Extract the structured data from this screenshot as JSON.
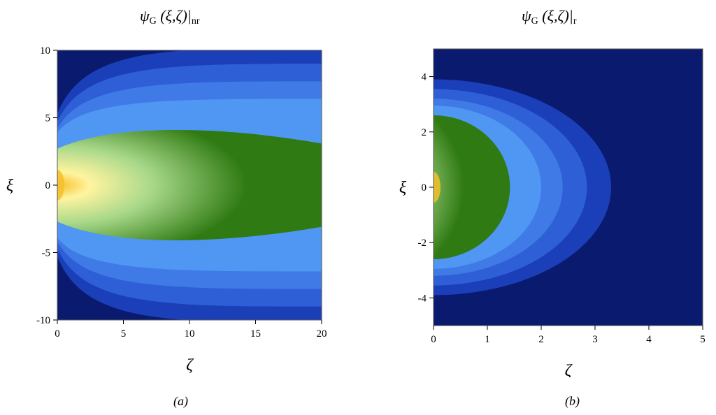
{
  "chart_data": [
    {
      "type": "heatmap",
      "panel": "a",
      "title": {
        "symbol": "ψ",
        "sub": "G",
        "args": " (ξ,ζ)|",
        "sub2": "nr"
      },
      "xlabel": "ζ",
      "ylabel": "ξ",
      "caption": "(a)",
      "xlim": [
        0,
        20
      ],
      "ylim": [
        -10,
        10
      ],
      "xticks": [
        0,
        5,
        10,
        15,
        20
      ],
      "yticks": [
        -10,
        -5,
        0,
        5,
        10
      ],
      "contour_regions": [
        {
          "level": "background",
          "color": "#0a1a6e"
        },
        {
          "level": "outer-band-1",
          "color": "#1a3fb8"
        },
        {
          "level": "outer-band-2",
          "color": "#2e5fd6"
        },
        {
          "level": "outer-band-3",
          "color": "#3f7ae6"
        },
        {
          "level": "outer-band-4",
          "color": "#4f97f2"
        },
        {
          "level": "inner",
          "color": "#2f7a12"
        },
        {
          "level": "peak",
          "color": "#f5c02a"
        }
      ],
      "peak_location": [
        0,
        0
      ]
    },
    {
      "type": "heatmap",
      "panel": "b",
      "title": {
        "symbol": "ψ",
        "sub": "G",
        "args": " (ξ,ζ)|",
        "sub2": "r"
      },
      "xlabel": "ζ",
      "ylabel": "ξ",
      "caption": "(b)",
      "xlim": [
        0,
        5
      ],
      "ylim": [
        -5,
        5
      ],
      "xticks": [
        0,
        1,
        2,
        3,
        4,
        5
      ],
      "yticks": [
        -4,
        -2,
        0,
        2,
        4
      ],
      "contour_regions": [
        {
          "level": "background",
          "color": "#0a1a6e"
        },
        {
          "level": "outer-band-1",
          "color": "#1a3fb8"
        },
        {
          "level": "outer-band-2",
          "color": "#2e5fd6"
        },
        {
          "level": "outer-band-3",
          "color": "#3f7ae6"
        },
        {
          "level": "outer-band-4",
          "color": "#4f97f2"
        },
        {
          "level": "inner",
          "color": "#2f7a12"
        },
        {
          "level": "peak",
          "color": "#f5c02a"
        }
      ],
      "peak_location": [
        0,
        0
      ]
    }
  ]
}
